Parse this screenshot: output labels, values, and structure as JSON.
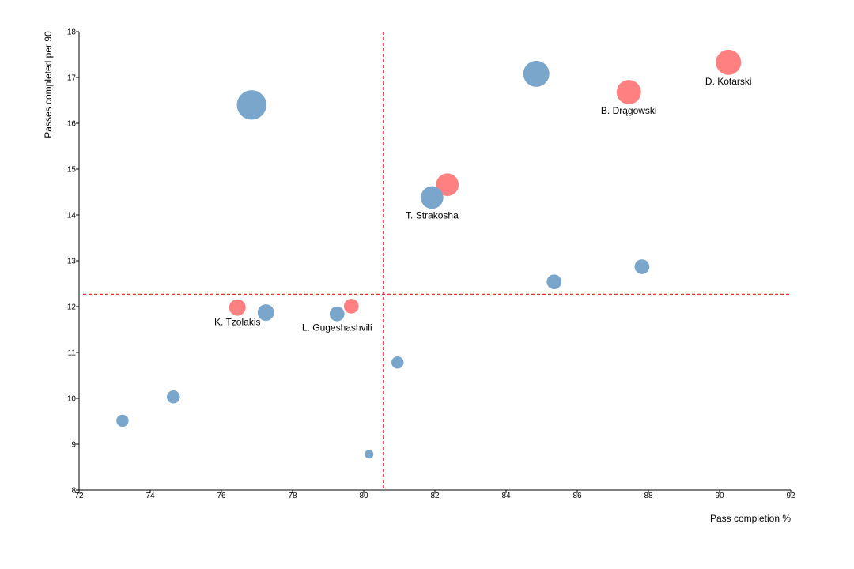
{
  "chart_data": {
    "type": "scatter",
    "title": "",
    "xlabel": "Pass completion %",
    "ylabel": "Passes completed per 90",
    "xlim": [
      72,
      92
    ],
    "ylim": [
      8,
      18
    ],
    "xticks": [
      "72",
      "74",
      "76",
      "78",
      "80",
      "82",
      "84",
      "86",
      "88",
      "90",
      "92"
    ],
    "yticks": [
      "8",
      "9",
      "10",
      "11",
      "12",
      "13",
      "14",
      "15",
      "16",
      "17",
      "18"
    ],
    "reference_lines": {
      "x": 80.55,
      "y": 12.27,
      "color": "#e8312f",
      "style": "dashed"
    },
    "colors": {
      "default": "#7aa6cb",
      "highlight": "#ff8080"
    },
    "points": [
      {
        "x": 76.85,
        "y": 16.4,
        "size": 3.4,
        "highlight": false,
        "label": ""
      },
      {
        "x": 84.85,
        "y": 17.08,
        "size": 3.0,
        "highlight": false,
        "label": ""
      },
      {
        "x": 90.25,
        "y": 17.33,
        "size": 2.9,
        "highlight": true,
        "label": "D. Kotarski"
      },
      {
        "x": 87.45,
        "y": 16.68,
        "size": 2.8,
        "highlight": true,
        "label": "B. Drągowski"
      },
      {
        "x": 82.35,
        "y": 14.66,
        "size": 2.6,
        "highlight": true,
        "label": ""
      },
      {
        "x": 81.92,
        "y": 14.38,
        "size": 2.6,
        "highlight": false,
        "label": "T. Strakosha"
      },
      {
        "x": 85.35,
        "y": 12.54,
        "size": 1.7,
        "highlight": false,
        "label": ""
      },
      {
        "x": 87.82,
        "y": 12.87,
        "size": 1.7,
        "highlight": false,
        "label": ""
      },
      {
        "x": 76.45,
        "y": 11.98,
        "size": 1.9,
        "highlight": true,
        "label": "K. Tzolakis"
      },
      {
        "x": 77.25,
        "y": 11.87,
        "size": 1.9,
        "highlight": false,
        "label": ""
      },
      {
        "x": 79.25,
        "y": 11.84,
        "size": 1.7,
        "highlight": false,
        "label": "L. Gugeshashvili"
      },
      {
        "x": 79.65,
        "y": 12.01,
        "size": 1.7,
        "highlight": true,
        "label": ""
      },
      {
        "x": 80.95,
        "y": 10.78,
        "size": 1.4,
        "highlight": false,
        "label": ""
      },
      {
        "x": 74.65,
        "y": 10.03,
        "size": 1.5,
        "highlight": false,
        "label": ""
      },
      {
        "x": 73.22,
        "y": 9.51,
        "size": 1.4,
        "highlight": false,
        "label": ""
      },
      {
        "x": 80.15,
        "y": 8.78,
        "size": 1.0,
        "highlight": false,
        "label": ""
      }
    ]
  }
}
